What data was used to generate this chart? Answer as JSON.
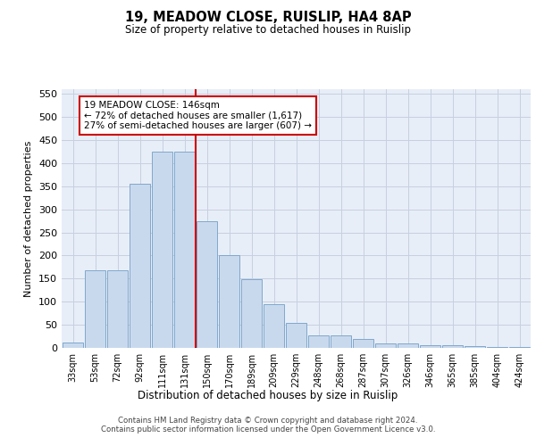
{
  "title_line1": "19, MEADOW CLOSE, RUISLIP, HA4 8AP",
  "title_line2": "Size of property relative to detached houses in Ruislip",
  "xlabel": "Distribution of detached houses by size in Ruislip",
  "ylabel": "Number of detached properties",
  "categories": [
    "33sqm",
    "53sqm",
    "72sqm",
    "92sqm",
    "111sqm",
    "131sqm",
    "150sqm",
    "170sqm",
    "189sqm",
    "209sqm",
    "229sqm",
    "248sqm",
    "268sqm",
    "287sqm",
    "307sqm",
    "326sqm",
    "346sqm",
    "365sqm",
    "385sqm",
    "404sqm",
    "424sqm"
  ],
  "bar_heights": [
    12,
    168,
    168,
    356,
    425,
    425,
    275,
    200,
    148,
    95,
    55,
    27,
    27,
    19,
    10,
    10,
    5,
    5,
    3,
    2,
    2
  ],
  "bar_color": "#c9d9ed",
  "bar_edge_color": "#7fa8cc",
  "vline_x_index": 6,
  "vline_color": "#cc0000",
  "annotation_line1": "19 MEADOW CLOSE: 146sqm",
  "annotation_line2": "← 72% of detached houses are smaller (1,617)",
  "annotation_line3": "27% of semi-detached houses are larger (607) →",
  "annotation_box_color": "#ffffff",
  "annotation_box_edge": "#cc0000",
  "ylim": [
    0,
    560
  ],
  "yticks": [
    0,
    50,
    100,
    150,
    200,
    250,
    300,
    350,
    400,
    450,
    500,
    550
  ],
  "bg_color": "#e8eef8",
  "grid_color": "#c8d0e0",
  "footer_line1": "Contains HM Land Registry data © Crown copyright and database right 2024.",
  "footer_line2": "Contains public sector information licensed under the Open Government Licence v3.0."
}
